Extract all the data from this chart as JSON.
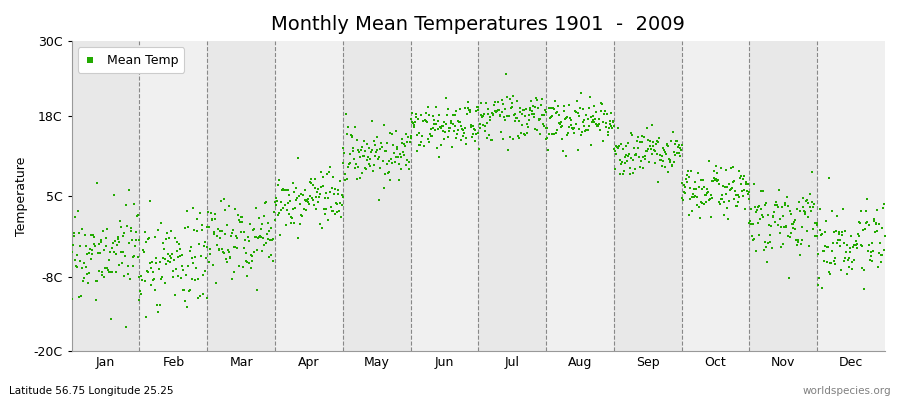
{
  "title": "Monthly Mean Temperatures 1901  -  2009",
  "ylabel": "Temperature",
  "subtitle_left": "Latitude 56.75 Longitude 25.25",
  "subtitle_right": "worldspecies.org",
  "legend_label": "Mean Temp",
  "dot_color": "#22aa00",
  "plot_bg_color": "#ebebeb",
  "band_color_1": "#e8e8e8",
  "band_color_2": "#f0f0f0",
  "figure_bg": "#ffffff",
  "ylim": [
    -20,
    30
  ],
  "yticks": [
    -20,
    -8,
    5,
    18,
    30
  ],
  "ytick_labels": [
    "-20C",
    "-8C",
    "5C",
    "18C",
    "30C"
  ],
  "months": [
    "Jan",
    "Feb",
    "Mar",
    "Apr",
    "May",
    "Jun",
    "Jul",
    "Aug",
    "Sep",
    "Oct",
    "Nov",
    "Dec"
  ],
  "mean_temps": [
    -4.5,
    -5.5,
    -1.5,
    4.5,
    11.5,
    16.0,
    18.0,
    17.0,
    12.0,
    6.0,
    1.0,
    -3.0
  ],
  "std_temps": [
    3.5,
    4.0,
    3.2,
    2.5,
    2.2,
    1.8,
    1.8,
    1.8,
    2.0,
    2.2,
    2.5,
    3.0
  ],
  "trend": [
    0.01,
    0.012,
    0.01,
    0.008,
    0.007,
    0.006,
    0.005,
    0.005,
    0.006,
    0.007,
    0.008,
    0.01
  ],
  "n_years": 109,
  "seed": 17,
  "dot_size": 3,
  "title_fontsize": 14,
  "label_fontsize": 9,
  "tick_fontsize": 9,
  "dashed_color": "#888888"
}
